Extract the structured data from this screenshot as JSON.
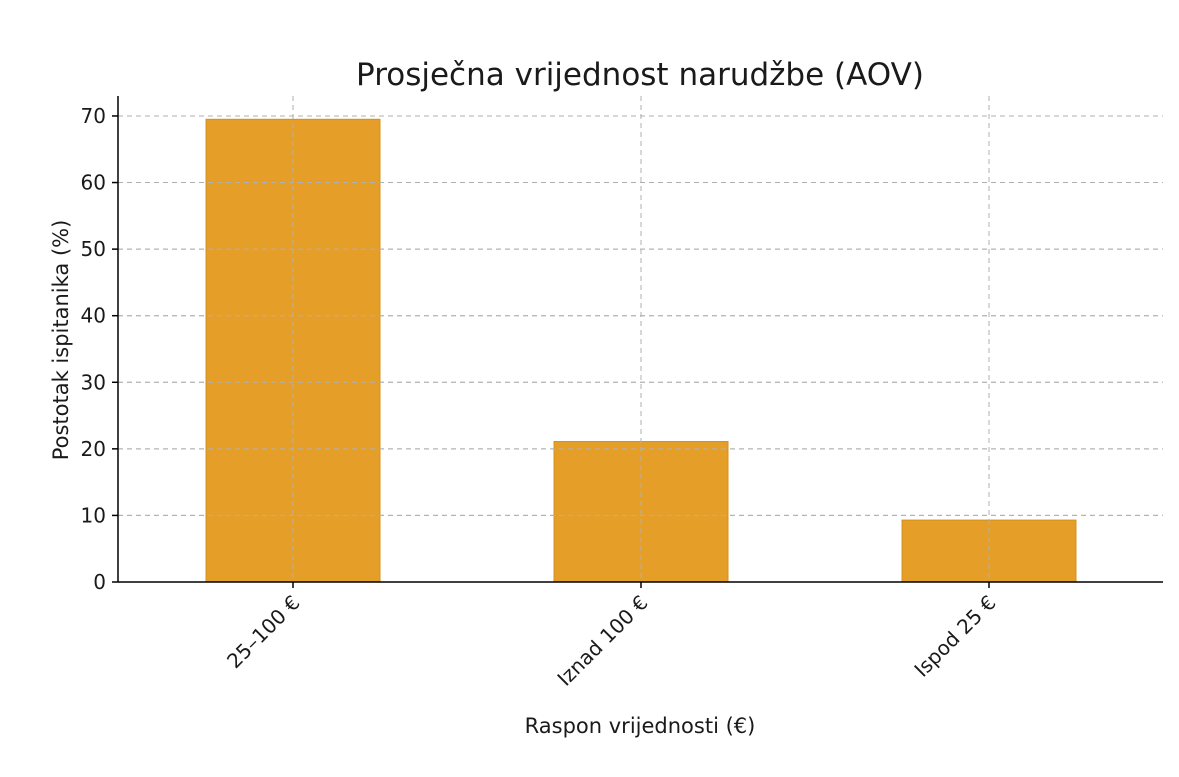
{
  "chart_data": {
    "type": "bar",
    "title": "Prosječna vrijednost narudžbe (AOV)",
    "xlabel": "Raspon vrijednosti (€)",
    "ylabel": "Postotak ispitanika (%)",
    "categories": [
      "25–100 €",
      "Iznad 100 €",
      "Ispod 25 €"
    ],
    "values": [
      69.5,
      21.1,
      9.3
    ],
    "ylim": [
      0,
      73
    ],
    "yticks": [
      0,
      10,
      20,
      30,
      40,
      50,
      60,
      70
    ],
    "grid": true,
    "bar_color": "#e59f28",
    "bar_edge_color": "#d4901d"
  }
}
